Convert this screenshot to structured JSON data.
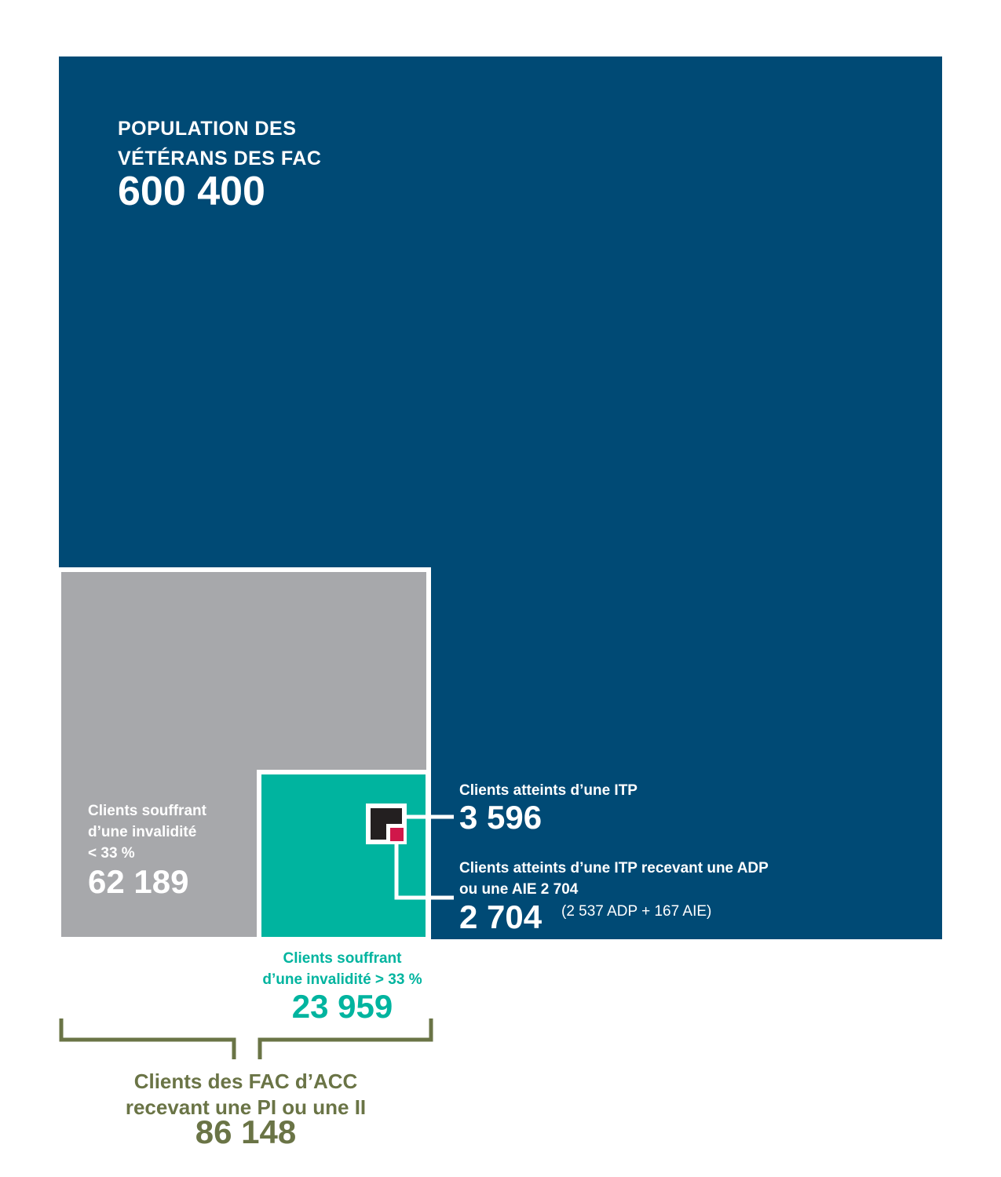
{
  "colors": {
    "population": "#004a75",
    "disability_under_33": "#a7a8ab",
    "disability_over_33": "#00b49f",
    "itp": "#231f20",
    "itp_adp_aie": "#d0174a",
    "bracket": "#6a7446"
  },
  "chart_data": {
    "type": "nested-squares",
    "items": [
      {
        "label": "POPULATION DES VÉTÉRANS DES FAC",
        "value": 600400,
        "display": "600 400"
      },
      {
        "label": "Clients souffrant d’une invalidité < 33 %",
        "value": 62189,
        "display": "62 189"
      },
      {
        "label": "Clients souffrant d’une invalidité > 33 %",
        "value": 23959,
        "display": "23 959"
      },
      {
        "label": "Clients atteints d’une ITP",
        "value": 3596,
        "display": "3 596"
      },
      {
        "label": "Clients atteints d’une ITP recevant une ADP ou une AIE 2 704",
        "value": 2704,
        "display": "2 704",
        "breakdown": "(2 537 ADP + 167 AIE)"
      }
    ],
    "total": {
      "label": "Clients des FAC d’ACC recevant une PI ou une II",
      "value": 86148,
      "display": "86 148"
    }
  },
  "population": {
    "title_line1": "POPULATION DES",
    "title_line2": "VÉTÉRANS DES FAC",
    "value": "600 400"
  },
  "disability_under": {
    "line1": "Clients souffrant",
    "line2": "d’une invalidité",
    "line3": "< 33 %",
    "value": "62 189"
  },
  "disability_over": {
    "line1": "Clients souffrant",
    "line2": "d’une invalidité > 33 %",
    "value": "23 959"
  },
  "itp": {
    "label": "Clients atteints d’une ITP",
    "value": "3 596"
  },
  "itp_adp": {
    "line1": "Clients atteints d’une ITP recevant une ADP",
    "line2": "ou une AIE 2 704",
    "value": "2 704",
    "breakdown": "(2 537 ADP + 167 AIE)"
  },
  "total": {
    "line1": "Clients des FAC d’ACC",
    "line2": "recevant une PI ou une II",
    "value": "86 148"
  }
}
